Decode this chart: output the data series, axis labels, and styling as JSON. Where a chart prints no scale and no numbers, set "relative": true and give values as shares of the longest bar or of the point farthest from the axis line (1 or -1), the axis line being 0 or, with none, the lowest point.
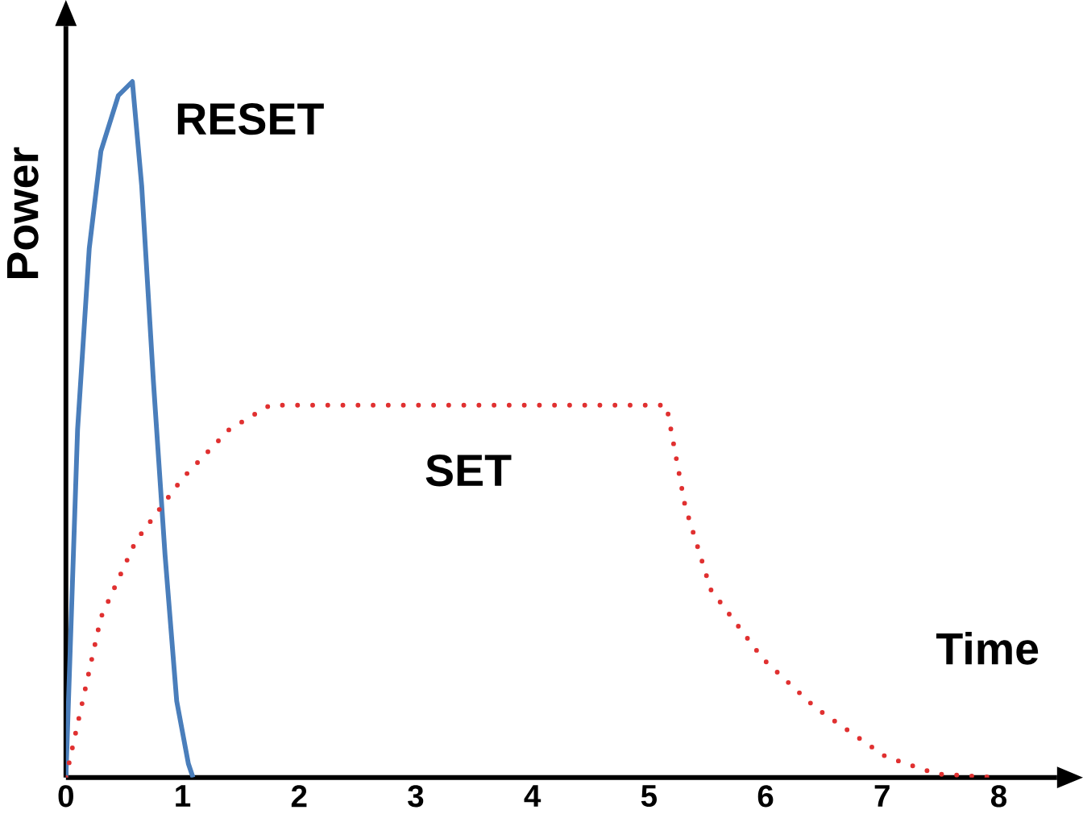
{
  "chart_data": {
    "type": "line",
    "relative": true,
    "xlabel": "Time",
    "ylabel": "Power",
    "xlim": [
      0,
      8.5
    ],
    "xticks": [
      0,
      1,
      2,
      3,
      4,
      5,
      6,
      7,
      8
    ],
    "grid": false,
    "marker": "none",
    "series": [
      {
        "name": "RESET",
        "color": "#4a7ebb",
        "line_style": "solid",
        "x": [
          0,
          0.1,
          0.2,
          0.3,
          0.45,
          0.57,
          0.65,
          0.75,
          0.85,
          0.95,
          1.05,
          1.09
        ],
        "values": [
          0,
          0.5,
          0.76,
          0.9,
          0.98,
          1,
          0.85,
          0.57,
          0.32,
          0.11,
          0.02,
          0
        ]
      },
      {
        "name": "SET",
        "color": "#e03030",
        "line_style": "dotted",
        "x": [
          0,
          0.3,
          0.6,
          1.0,
          1.4,
          1.75,
          5.15,
          5.31,
          5.53,
          5.98,
          6.43,
          7.03,
          7.47,
          8.0
        ],
        "values": [
          0,
          0.23,
          0.34,
          0.43,
          0.5,
          0.535,
          0.535,
          0.39,
          0.27,
          0.17,
          0.1,
          0.03,
          0.005,
          0
        ]
      }
    ]
  }
}
